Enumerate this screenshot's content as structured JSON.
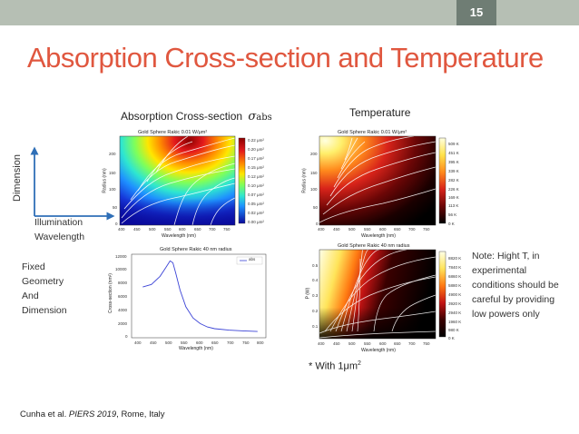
{
  "slide": {
    "page_number": "15",
    "title": "Absorption Cross-section and Temperature",
    "citation_prefix": "Cunha et al. ",
    "citation_journal": "PIERS 2019",
    "citation_suffix": ", Rome, Italy"
  },
  "axes_diagram": {
    "y_label": "Dimension",
    "x_label_line1": "Illumination",
    "x_label_line2": "Wavelength"
  },
  "left_note": {
    "lines": [
      "Fixed",
      "Geometry",
      "And",
      "Dimension"
    ]
  },
  "right_note": {
    "lines": [
      "Note: Hight T, in",
      "experimental",
      "conditions should be",
      "careful by providing",
      "low powers only"
    ]
  },
  "labels": {
    "absorption_header": "Absorption Cross-section",
    "sigma": "σ",
    "sigma_sub": "abs",
    "temperature_header": "Temperature",
    "with_note": "* With 1μm",
    "with_note_sup": "2"
  },
  "plot_abs_map": {
    "title": "Gold Sphere Rakic 0.01 W/μm²",
    "xlabel": "Wavelength (nm)",
    "ylabel": "Radius (nm)",
    "xticks": [
      "400",
      "450",
      "500",
      "550",
      "600",
      "650",
      "700",
      "750"
    ],
    "yticks": [
      "200",
      "150",
      "100",
      "50",
      "0"
    ],
    "colorbar": [
      "0.22 μm²",
      "0.20 μm²",
      "0.17 μm²",
      "0.15 μm²",
      "0.12 μm²",
      "0.10 μm²",
      "0.07 μm²",
      "0.05 μm²",
      "0.02 μm²",
      "0.00 μm²"
    ]
  },
  "plot_temp_map": {
    "title": "Gold Sphere Rakic 0.01 W/μm²",
    "xlabel": "Wavelength (nm)",
    "ylabel": "Radius (nm)",
    "xticks": [
      "400",
      "450",
      "500",
      "550",
      "600",
      "650",
      "700",
      "750"
    ],
    "yticks": [
      "200",
      "150",
      "100",
      "50",
      "0"
    ],
    "colorbar": [
      "509 K",
      "451 K",
      "395 K",
      "339 K",
      "282 K",
      "226 K",
      "169 K",
      "113 K",
      "56 K",
      "0 K"
    ]
  },
  "plot_abs_line": {
    "title": "Gold Sphere Rakic 40 nm radius",
    "xlabel": "Wavelength (nm)",
    "ylabel": "Cross-section (nm²)",
    "legend": "abs",
    "xticks": [
      "400",
      "450",
      "500",
      "550",
      "600",
      "650",
      "700",
      "750",
      "800"
    ],
    "yticks": [
      "12000",
      "10000",
      "8000",
      "6000",
      "4000",
      "2000",
      "0"
    ],
    "chart_data": {
      "type": "line",
      "xlim": [
        380,
        810
      ],
      "ylim": [
        0,
        12000
      ],
      "x": [
        400,
        430,
        460,
        480,
        495,
        505,
        515,
        530,
        550,
        575,
        600,
        625,
        650,
        700,
        750,
        800
      ],
      "y": [
        7600,
        8000,
        9300,
        10700,
        11800,
        11500,
        9800,
        7100,
        4400,
        2600,
        1700,
        1150,
        880,
        650,
        520,
        430
      ]
    }
  },
  "plot_temp_power": {
    "title": "Gold Sphere Rakic 40 nm radius",
    "xlabel": "Wavelength (nm)",
    "ylabel": "P (W)",
    "xticks": [
      "400",
      "450",
      "500",
      "550",
      "600",
      "650",
      "700",
      "750"
    ],
    "yticks": [
      "0.5",
      "0.4",
      "0.3",
      "0.2",
      "0.1"
    ],
    "colorbar": [
      "8820 K",
      "7840 K",
      "6860 K",
      "5880 K",
      "4900 K",
      "3920 K",
      "2940 K",
      "1960 K",
      "980 K",
      "0 K"
    ]
  },
  "colors": {
    "title": "#e0573f",
    "topbar": "#b6bfb4",
    "line": "#3b43d6"
  }
}
